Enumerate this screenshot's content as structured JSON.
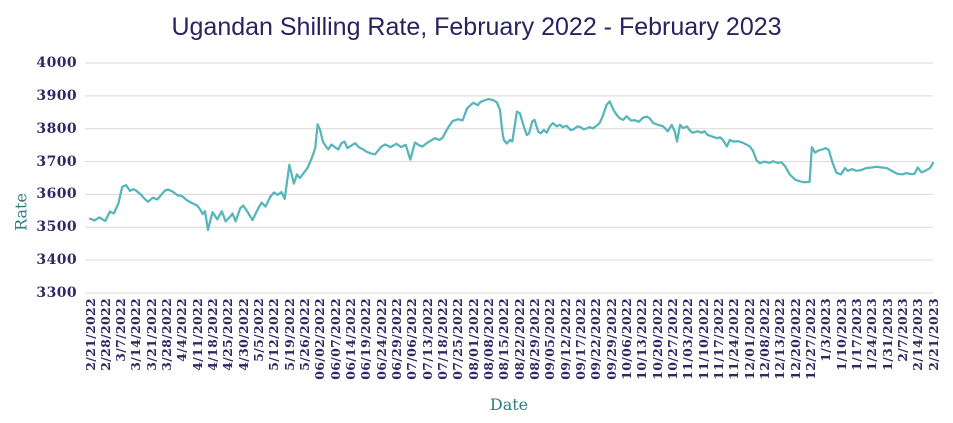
{
  "page": {
    "background": "#ffffff"
  },
  "chart_data": {
    "type": "line",
    "title": "Ugandan Shilling Rate, February 2022 - February 2023",
    "xlabel": "Date",
    "ylabel": "Rate",
    "ylim": [
      3300,
      4000
    ],
    "yticks": [
      4000,
      3900,
      3800,
      3700,
      3600,
      3500,
      3400,
      3300
    ],
    "grid": "horizontal-only",
    "legend": "none",
    "style": {
      "line_color": "#56b6b9",
      "grid_color": "#d9d9d9",
      "tick_text_color": "#2e2963",
      "title_color": "#272360",
      "axis_title_color": "#2f7c7e",
      "background": "#ffffff",
      "x_tick_rotation_deg": 90
    },
    "categories": [
      "2/21/2022",
      "2/28/2022",
      "3/7/2022",
      "3/14/2022",
      "3/21/2022",
      "3/28/2022",
      "4/4/2022",
      "4/11/2022",
      "4/18/2022",
      "4/25/2022",
      "4/30/2022",
      "5/5/2022",
      "5/12/2022",
      "5/19/2022",
      "5/26/2022",
      "06/02/2022",
      "06/07/2022",
      "06/14/2022",
      "06/19/2022",
      "06/24/2022",
      "06/29/2022",
      "07/06/2022",
      "07/13/2022",
      "07/18/2022",
      "07/25/2022",
      "08/01/2022",
      "08/08/2022",
      "08/15/2022",
      "08/22/2022",
      "08/29/2022",
      "09/05/2022",
      "09/12/2022",
      "09/17/2022",
      "09/22/2022",
      "09/29/2022",
      "10/06/2022",
      "10/13/2022",
      "10/20/2022",
      "10/27/2022",
      "11/03/2022",
      "11/10/2022",
      "11/17/2022",
      "11/24/2022",
      "12/01/2022",
      "12/08/2022",
      "12/13/2022",
      "12/20/2022",
      "12/27/2022",
      "1/3/2023",
      "1/10/2023",
      "1/17/2023",
      "1/24/2023",
      "1/31/2023",
      "2/7/2023",
      "2/14/2023",
      "2/21/2023"
    ],
    "points_format": "[category_index, rate]",
    "series": [
      {
        "name": "Rate",
        "color": "#56b6b9",
        "points": [
          [
            0,
            3526
          ],
          [
            0.3,
            3521
          ],
          [
            0.6,
            3530
          ],
          [
            1,
            3519
          ],
          [
            1.3,
            3548
          ],
          [
            1.55,
            3542
          ],
          [
            1.85,
            3572
          ],
          [
            2.1,
            3623
          ],
          [
            2.35,
            3628
          ],
          [
            2.6,
            3611
          ],
          [
            2.85,
            3616
          ],
          [
            3,
            3612
          ],
          [
            3.3,
            3600
          ],
          [
            3.6,
            3585
          ],
          [
            3.8,
            3578
          ],
          [
            4.1,
            3590
          ],
          [
            4.4,
            3585
          ],
          [
            4.7,
            3602
          ],
          [
            4.9,
            3612
          ],
          [
            5.1,
            3615
          ],
          [
            5.4,
            3608
          ],
          [
            5.7,
            3598
          ],
          [
            6,
            3595
          ],
          [
            6.3,
            3583
          ],
          [
            6.6,
            3575
          ],
          [
            7,
            3566
          ],
          [
            7.2,
            3553
          ],
          [
            7.35,
            3540
          ],
          [
            7.5,
            3549
          ],
          [
            7.7,
            3492
          ],
          [
            7.85,
            3520
          ],
          [
            8,
            3546
          ],
          [
            8.3,
            3524
          ],
          [
            8.6,
            3549
          ],
          [
            8.85,
            3518
          ],
          [
            9.1,
            3530
          ],
          [
            9.3,
            3542
          ],
          [
            9.5,
            3518
          ],
          [
            9.8,
            3558
          ],
          [
            10,
            3566
          ],
          [
            10.3,
            3545
          ],
          [
            10.6,
            3522
          ],
          [
            11,
            3560
          ],
          [
            11.2,
            3575
          ],
          [
            11.45,
            3563
          ],
          [
            11.75,
            3592
          ],
          [
            12,
            3606
          ],
          [
            12.25,
            3599
          ],
          [
            12.5,
            3607
          ],
          [
            12.7,
            3586
          ],
          [
            13,
            3690
          ],
          [
            13.3,
            3633
          ],
          [
            13.5,
            3661
          ],
          [
            13.7,
            3650
          ],
          [
            14,
            3669
          ],
          [
            14.2,
            3681
          ],
          [
            14.5,
            3714
          ],
          [
            14.7,
            3742
          ],
          [
            14.85,
            3813
          ],
          [
            15,
            3798
          ],
          [
            15.2,
            3760
          ],
          [
            15.4,
            3746
          ],
          [
            15.55,
            3737
          ],
          [
            15.75,
            3752
          ],
          [
            16,
            3743
          ],
          [
            16.2,
            3737
          ],
          [
            16.4,
            3756
          ],
          [
            16.6,
            3761
          ],
          [
            16.8,
            3741
          ],
          [
            17,
            3747
          ],
          [
            17.3,
            3756
          ],
          [
            17.55,
            3743
          ],
          [
            17.8,
            3738
          ],
          [
            18,
            3731
          ],
          [
            18.3,
            3725
          ],
          [
            18.6,
            3722
          ],
          [
            19,
            3745
          ],
          [
            19.25,
            3752
          ],
          [
            19.6,
            3744
          ],
          [
            20,
            3754
          ],
          [
            20.3,
            3744
          ],
          [
            20.6,
            3751
          ],
          [
            20.9,
            3706
          ],
          [
            21.2,
            3758
          ],
          [
            21.5,
            3749
          ],
          [
            21.7,
            3746
          ],
          [
            22,
            3757
          ],
          [
            22.5,
            3771
          ],
          [
            22.8,
            3766
          ],
          [
            23,
            3772
          ],
          [
            23.2,
            3790
          ],
          [
            23.4,
            3806
          ],
          [
            23.65,
            3823
          ],
          [
            24,
            3829
          ],
          [
            24.3,
            3825
          ],
          [
            24.6,
            3862
          ],
          [
            25,
            3879
          ],
          [
            25.3,
            3872
          ],
          [
            25.5,
            3882
          ],
          [
            25.8,
            3887
          ],
          [
            26,
            3890
          ],
          [
            26.3,
            3887
          ],
          [
            26.55,
            3880
          ],
          [
            26.75,
            3857
          ],
          [
            26.9,
            3792
          ],
          [
            27,
            3766
          ],
          [
            27.2,
            3755
          ],
          [
            27.4,
            3766
          ],
          [
            27.55,
            3761
          ],
          [
            27.85,
            3852
          ],
          [
            28.05,
            3847
          ],
          [
            28.3,
            3807
          ],
          [
            28.5,
            3781
          ],
          [
            28.65,
            3786
          ],
          [
            28.85,
            3822
          ],
          [
            29,
            3827
          ],
          [
            29.25,
            3791
          ],
          [
            29.4,
            3786
          ],
          [
            29.6,
            3796
          ],
          [
            29.8,
            3788
          ],
          [
            30,
            3807
          ],
          [
            30.2,
            3817
          ],
          [
            30.45,
            3807
          ],
          [
            30.65,
            3812
          ],
          [
            30.85,
            3805
          ],
          [
            31.1,
            3809
          ],
          [
            31.35,
            3796
          ],
          [
            31.55,
            3798
          ],
          [
            31.8,
            3807
          ],
          [
            32,
            3805
          ],
          [
            32.2,
            3798
          ],
          [
            32.4,
            3801
          ],
          [
            32.6,
            3805
          ],
          [
            32.8,
            3801
          ],
          [
            33.05,
            3809
          ],
          [
            33.25,
            3817
          ],
          [
            33.45,
            3838
          ],
          [
            33.7,
            3872
          ],
          [
            33.9,
            3883
          ],
          [
            34.15,
            3858
          ],
          [
            34.35,
            3843
          ],
          [
            34.55,
            3832
          ],
          [
            34.8,
            3827
          ],
          [
            35,
            3838
          ],
          [
            35.3,
            3825
          ],
          [
            35.55,
            3826
          ],
          [
            35.8,
            3821
          ],
          [
            36.1,
            3834
          ],
          [
            36.35,
            3837
          ],
          [
            36.55,
            3830
          ],
          [
            36.75,
            3817
          ],
          [
            37.05,
            3812
          ],
          [
            37.4,
            3807
          ],
          [
            37.7,
            3792
          ],
          [
            37.95,
            3812
          ],
          [
            38.15,
            3792
          ],
          [
            38.3,
            3761
          ],
          [
            38.5,
            3812
          ],
          [
            38.7,
            3802
          ],
          [
            38.95,
            3807
          ],
          [
            39.1,
            3797
          ],
          [
            39.3,
            3788
          ],
          [
            39.65,
            3792
          ],
          [
            39.9,
            3788
          ],
          [
            40.1,
            3792
          ],
          [
            40.3,
            3781
          ],
          [
            40.6,
            3776
          ],
          [
            40.9,
            3771
          ],
          [
            41.1,
            3774
          ],
          [
            41.3,
            3766
          ],
          [
            41.55,
            3746
          ],
          [
            41.75,
            3766
          ],
          [
            41.95,
            3761
          ],
          [
            42.3,
            3762
          ],
          [
            42.6,
            3757
          ],
          [
            42.85,
            3751
          ],
          [
            43.05,
            3746
          ],
          [
            43.25,
            3733
          ],
          [
            43.5,
            3703
          ],
          [
            43.7,
            3695
          ],
          [
            44,
            3700
          ],
          [
            44.35,
            3696
          ],
          [
            44.55,
            3701
          ],
          [
            44.9,
            3696
          ],
          [
            45.1,
            3698
          ],
          [
            45.35,
            3686
          ],
          [
            45.65,
            3661
          ],
          [
            46,
            3645
          ],
          [
            46.3,
            3640
          ],
          [
            46.6,
            3637
          ],
          [
            46.95,
            3638
          ],
          [
            47.1,
            3744
          ],
          [
            47.3,
            3727
          ],
          [
            47.5,
            3733
          ],
          [
            47.8,
            3737
          ],
          [
            48,
            3741
          ],
          [
            48.2,
            3735
          ],
          [
            48.45,
            3696
          ],
          [
            48.7,
            3666
          ],
          [
            49,
            3661
          ],
          [
            49.25,
            3680
          ],
          [
            49.45,
            3672
          ],
          [
            49.7,
            3677
          ],
          [
            50,
            3672
          ],
          [
            50.3,
            3674
          ],
          [
            50.65,
            3680
          ],
          [
            51,
            3682
          ],
          [
            51.3,
            3684
          ],
          [
            51.65,
            3682
          ],
          [
            52,
            3680
          ],
          [
            52.3,
            3672
          ],
          [
            52.65,
            3663
          ],
          [
            53,
            3661
          ],
          [
            53.25,
            3665
          ],
          [
            53.6,
            3662
          ],
          [
            53.8,
            3663
          ],
          [
            54,
            3682
          ],
          [
            54.25,
            3667
          ],
          [
            54.5,
            3672
          ],
          [
            54.8,
            3680
          ],
          [
            55,
            3696
          ]
        ]
      }
    ]
  }
}
